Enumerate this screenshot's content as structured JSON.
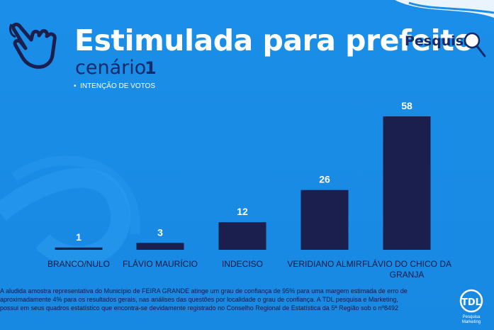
{
  "header": {
    "title": "Estimulada para prefeito",
    "subtitle": "cenário",
    "scenario_number": "1",
    "legend": "INTENÇÃO DE VOTOS",
    "brand": "Pesquisa"
  },
  "colors": {
    "background": "#1a8ee8",
    "bar": "#1a1f4e",
    "dark_text": "#142a6b"
  },
  "icons": [
    "hand-pointer-icon",
    "magnifier-icon",
    "tdl-logo"
  ],
  "logo": {
    "line1": "TDL",
    "line2": "Pesquisa",
    "line3": "Marketing"
  },
  "footnote": {
    "line1": "A aludida amostra representativa do Município de FEIRA GRANDE atinge um grau de confiança de 95% para uma margem estimada de erro de",
    "line2": "aproximadamente 4% para os resultados gerais, nas análises das questões por localidade o grau de confiança.  A TDL pesquisa e Marketing,",
    "line3": "possui em seus quadros estatístico que encontra-se devidamente registrado no Conselho Regional de Estatística da 5ª Região sob o nº8492"
  },
  "chart_data": {
    "type": "bar",
    "title": "Estimulada para prefeito",
    "subtitle": "cenário 1",
    "categories": [
      "BRANCO/NULO",
      "FLÁVIO MAURÍCIO",
      "INDECISO",
      "VERIDIANO ALMIR",
      "FLÁVIO DO CHICO DA GRANJA"
    ],
    "series": [
      {
        "name": "INTENÇÃO DE VOTOS",
        "values": [
          1,
          3,
          12,
          26,
          58
        ]
      }
    ],
    "ylim": [
      0,
      58
    ],
    "grid": false,
    "legend_position": "top-left",
    "xlabel": "",
    "ylabel": ""
  }
}
